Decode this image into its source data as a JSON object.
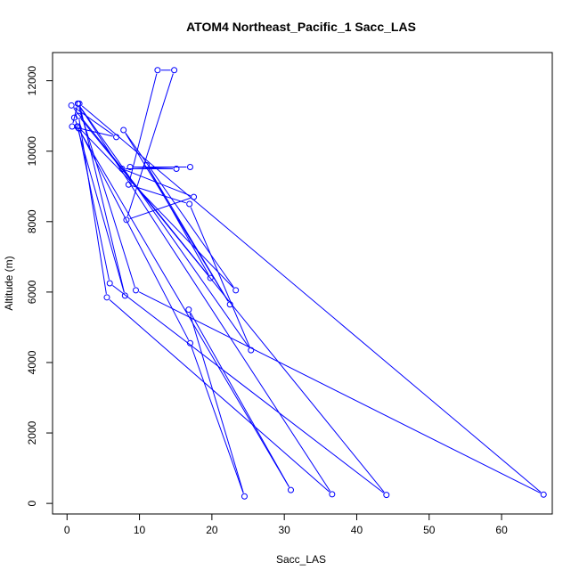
{
  "chart_data": {
    "type": "line",
    "title": "ATOM4 Northeast_Pacific_1 Sacc_LAS",
    "xlabel": "Sacc_LAS",
    "ylabel": "Altitude (m)",
    "xlim": [
      -2,
      67
    ],
    "ylim": [
      -300,
      12800
    ],
    "xticks": [
      0,
      10,
      20,
      30,
      40,
      50,
      60
    ],
    "yticks": [
      0,
      2000,
      4000,
      6000,
      8000,
      10000,
      12000
    ],
    "grid": false,
    "legend": "none",
    "series_color": "#0000ff",
    "marker": "open-circle",
    "series": [
      {
        "x": [
          1.5,
          1.0,
          1.6,
          17.0,
          24.5,
          16.8,
          30.9,
          1.4,
          8.0,
          1.7,
          65.8,
          9.5,
          1.5,
          36.6,
          5.5,
          1.6,
          44.1,
          5.9,
          1.5,
          23.3,
          7.8,
          22.5,
          11.0,
          19.8,
          0.6,
          6.8,
          0.7,
          1.5,
          25.4,
          16.9,
          8.5,
          12.5,
          14.8,
          8.2,
          17.5,
          7.6,
          15.1,
          8.7,
          17.0
        ],
        "y": [
          11350,
          10950,
          10650,
          4550,
          200,
          5500,
          380,
          10700,
          5900,
          11350,
          250,
          6050,
          11350,
          260,
          5850,
          11000,
          240,
          6250,
          10700,
          6050,
          10600,
          5650,
          9600,
          6400,
          11300,
          10400,
          10700,
          11350,
          4350,
          8500,
          9050,
          12300,
          12300,
          8050,
          8700,
          9500,
          9500,
          9550,
          9550
        ]
      }
    ]
  }
}
